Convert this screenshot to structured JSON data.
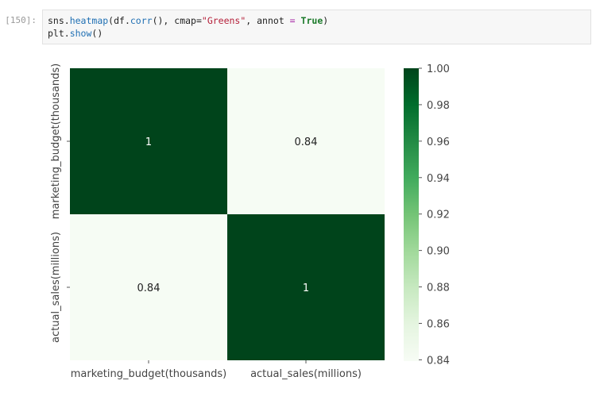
{
  "cell": {
    "prompt": "[150]:",
    "line1": {
      "a": "sns.",
      "b": "heatmap",
      "c": "(df.",
      "d": "corr",
      "e": "(), cmap=",
      "f": "\"Greens\"",
      "g": ", annot ",
      "h": "=",
      "i": " ",
      "j": "True",
      "k": ")"
    },
    "line2": {
      "a": "plt.",
      "b": "show",
      "c": "()"
    }
  },
  "chart_data": {
    "type": "heatmap",
    "x_categories": [
      "marketing_budget(thousands)",
      "actual_sales(millions)"
    ],
    "y_categories": [
      "marketing_budget(thousands)",
      "actual_sales(millions)"
    ],
    "values": [
      [
        1,
        0.84
      ],
      [
        0.84,
        1
      ]
    ],
    "annotations": [
      [
        "1",
        "0.84"
      ],
      [
        "0.84",
        "1"
      ]
    ],
    "colormap": "Greens",
    "colorbar": {
      "range": [
        0.8393,
        1.0
      ],
      "ticks": [
        0.84,
        0.86,
        0.88,
        0.9,
        0.92,
        0.94,
        0.96,
        0.98,
        1.0
      ],
      "tick_labels": [
        "0.84",
        "0.86",
        "0.88",
        "0.90",
        "0.92",
        "0.94",
        "0.96",
        "0.98",
        "1.00"
      ]
    },
    "colors": {
      "high": "#00441b",
      "low": "#f7fcf5",
      "annot_dark": "#222222",
      "annot_light": "#ffffff"
    }
  }
}
